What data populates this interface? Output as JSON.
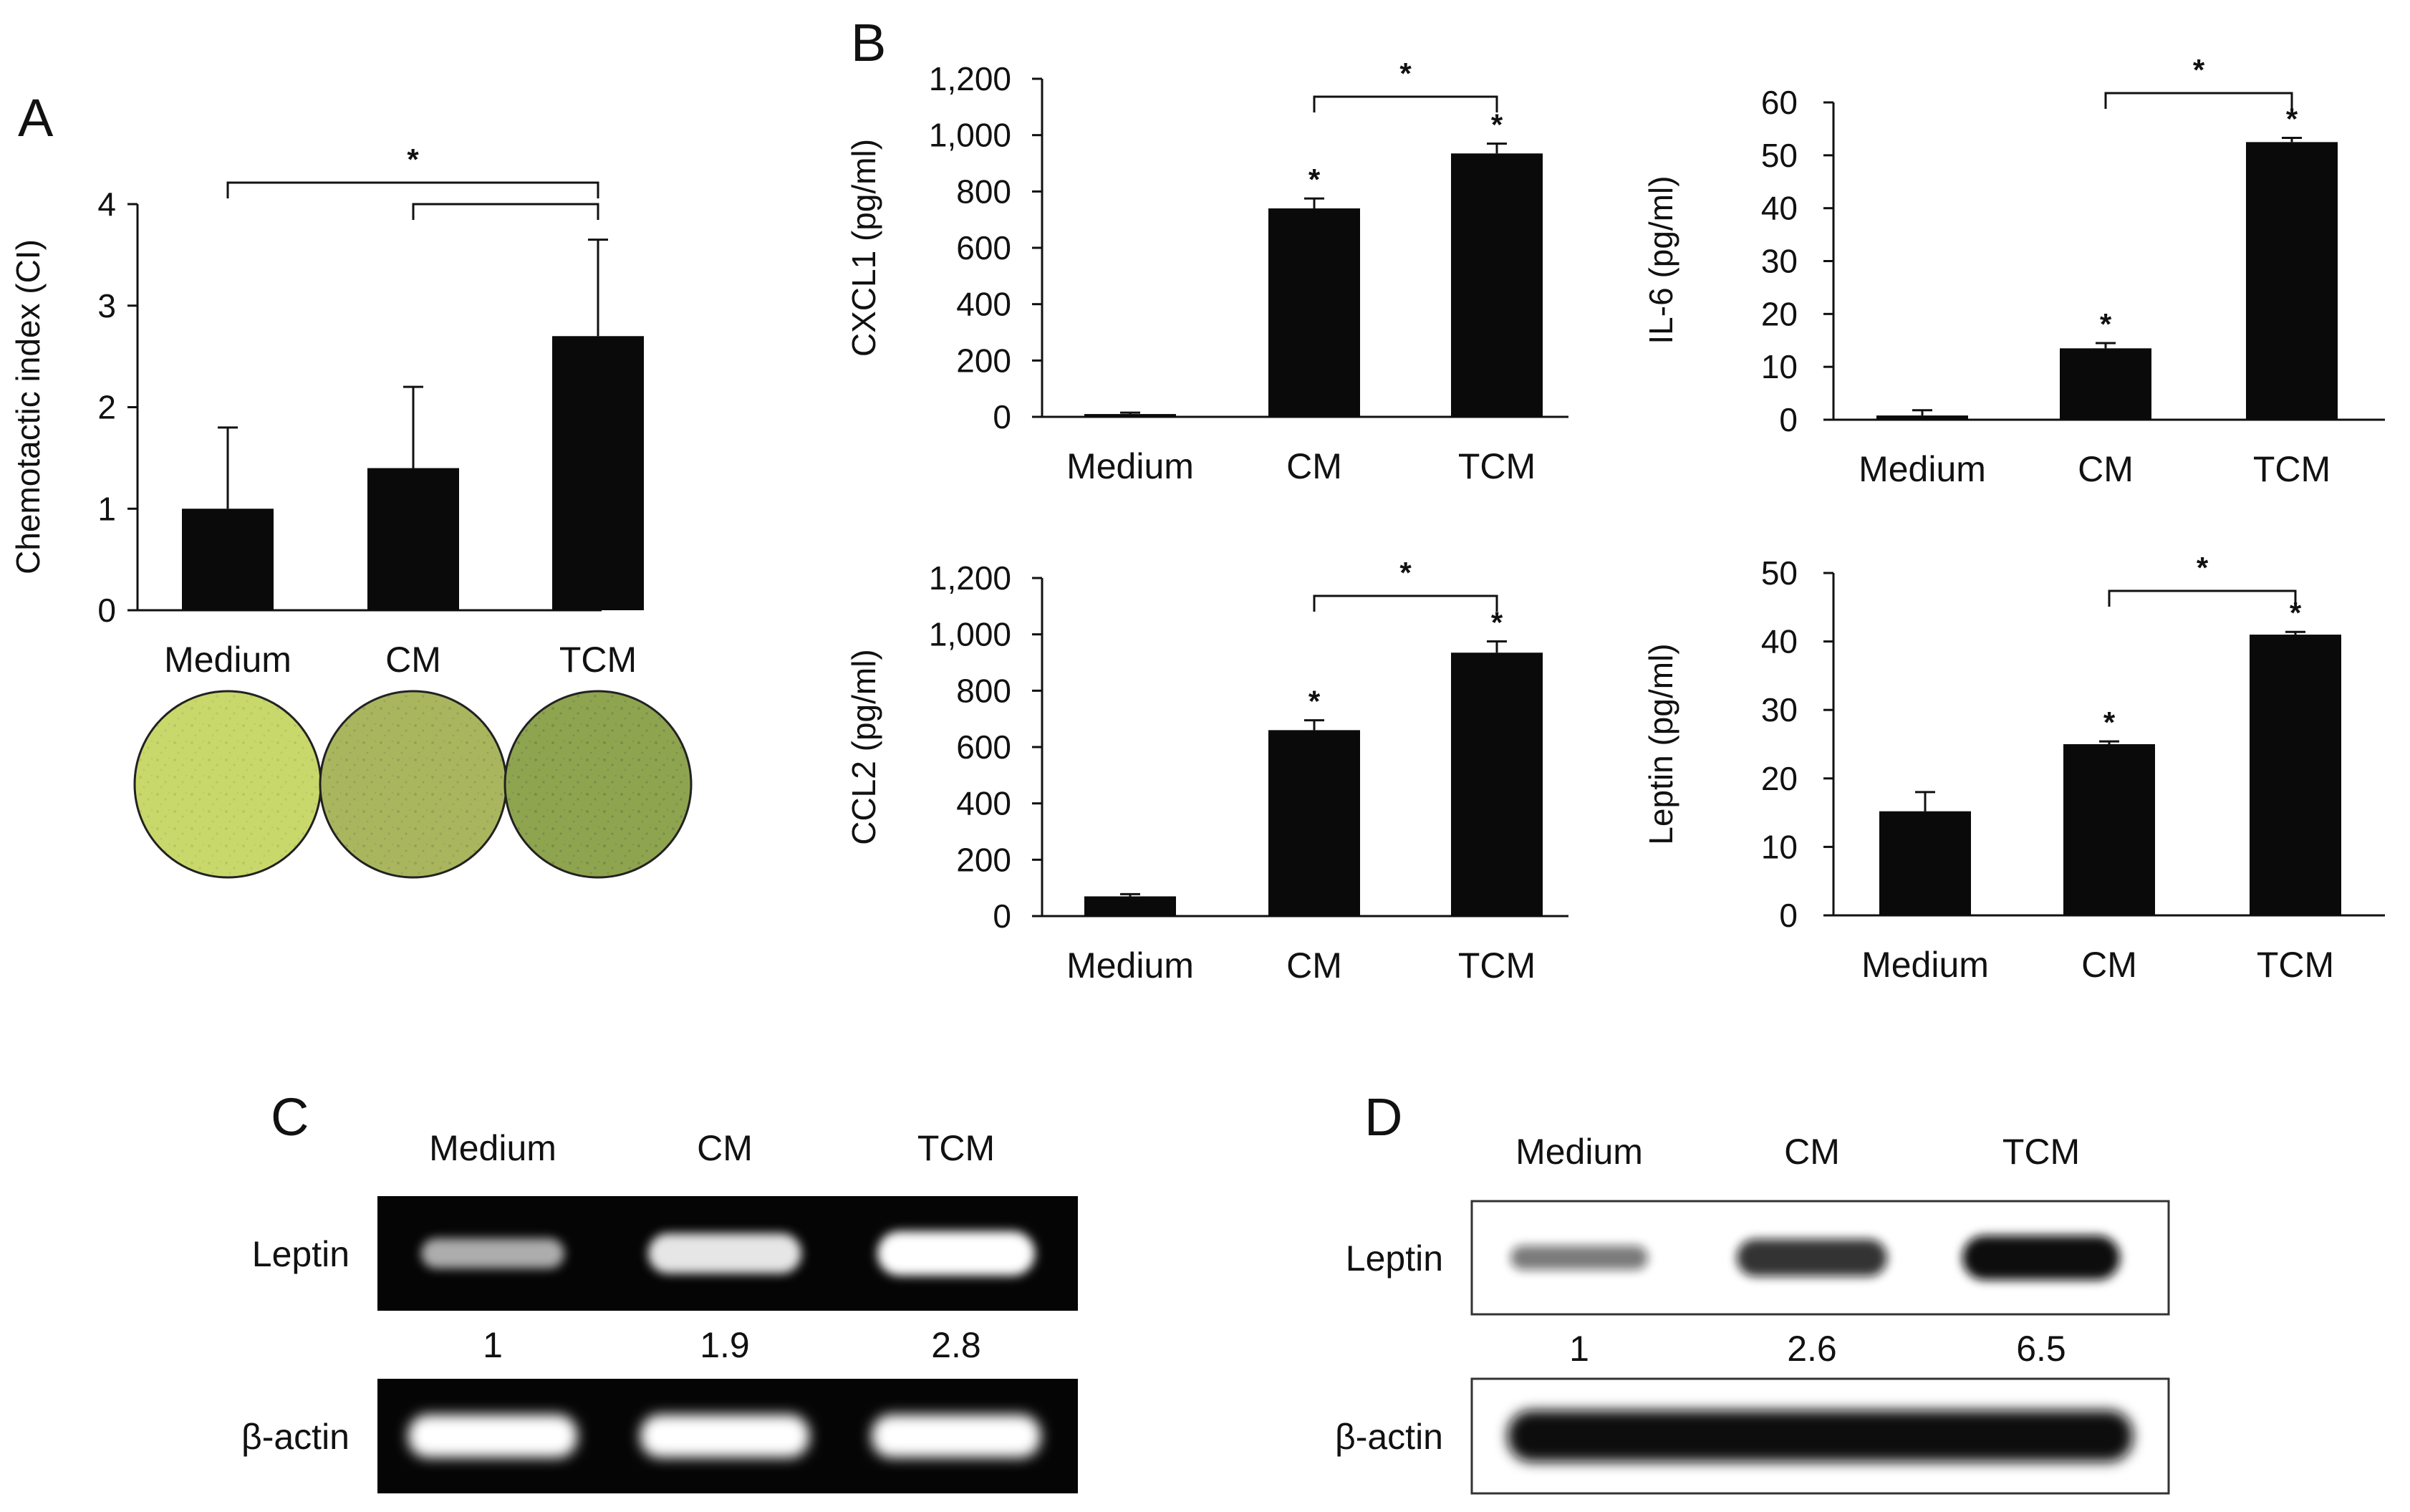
{
  "chart_data": [
    {
      "id": "A",
      "type": "bar",
      "panel_label": "A",
      "ylabel": "Chemotactic index (CI)",
      "categories": [
        "Medium",
        "CM",
        "TCM"
      ],
      "values": [
        1.0,
        1.4,
        2.7
      ],
      "errors": [
        0.8,
        0.8,
        0.95
      ],
      "ylim": [
        0,
        4
      ],
      "yticks": [
        "0",
        "1",
        "2",
        "3",
        "4"
      ],
      "bar_stars": [
        "",
        "",
        ""
      ],
      "brackets": [
        {
          "from": 0,
          "to": 2,
          "label": "*"
        },
        {
          "from": 1,
          "to": 2,
          "label": ""
        }
      ],
      "images": [
        {
          "label": "Medium",
          "color": "#c9d86a"
        },
        {
          "label": "CM",
          "color": "#aab65e"
        },
        {
          "label": "TCM",
          "color": "#8fa44f"
        }
      ]
    },
    {
      "id": "B1",
      "type": "bar",
      "panel_label": "B",
      "ylabel": "CXCL1 (pg/ml)",
      "categories": [
        "Medium",
        "CM",
        "TCM"
      ],
      "values": [
        10,
        740,
        935
      ],
      "errors": [
        5,
        35,
        35
      ],
      "ylim": [
        0,
        1200
      ],
      "yticks": [
        "0",
        "200",
        "400",
        "600",
        "800",
        "1,000",
        "1,200"
      ],
      "bar_stars": [
        "",
        "*",
        "*"
      ],
      "brackets": [
        {
          "from": 1,
          "to": 2,
          "label": "*"
        }
      ]
    },
    {
      "id": "B2",
      "type": "bar",
      "panel_label": "",
      "ylabel": "IL-6 (pg/ml)",
      "categories": [
        "Medium",
        "CM",
        "TCM"
      ],
      "values": [
        0.8,
        13.5,
        52.5
      ],
      "errors": [
        1.0,
        1.0,
        0.8
      ],
      "ylim": [
        0,
        60
      ],
      "yticks": [
        "0",
        "10",
        "20",
        "30",
        "40",
        "50",
        "60"
      ],
      "bar_stars": [
        "",
        "*",
        "*"
      ],
      "brackets": [
        {
          "from": 1,
          "to": 2,
          "label": "*"
        }
      ]
    },
    {
      "id": "B3",
      "type": "bar",
      "panel_label": "",
      "ylabel": "CCL2 (pg/ml)",
      "categories": [
        "Medium",
        "CM",
        "TCM"
      ],
      "values": [
        70,
        660,
        935
      ],
      "errors": [
        8,
        35,
        40
      ],
      "ylim": [
        0,
        1200
      ],
      "yticks": [
        "0",
        "200",
        "400",
        "600",
        "800",
        "1,000",
        "1,200"
      ],
      "bar_stars": [
        "",
        "*",
        "*"
      ],
      "brackets": [
        {
          "from": 1,
          "to": 2,
          "label": "*"
        }
      ]
    },
    {
      "id": "B4",
      "type": "bar",
      "panel_label": "",
      "ylabel": "Leptin (pg/ml)",
      "categories": [
        "Medium",
        "CM",
        "TCM"
      ],
      "values": [
        15.2,
        25.0,
        41.0
      ],
      "errors": [
        2.8,
        0.4,
        0.4
      ],
      "ylim": [
        0,
        50
      ],
      "yticks": [
        "0",
        "10",
        "20",
        "30",
        "40",
        "50"
      ],
      "bar_stars": [
        "",
        "*",
        "*"
      ],
      "brackets": [
        {
          "from": 1,
          "to": 2,
          "label": "*"
        }
      ]
    }
  ],
  "gels": [
    {
      "id": "C",
      "panel_label": "C",
      "lanes": [
        "Medium",
        "CM",
        "TCM"
      ],
      "rows": [
        "Leptin",
        "β-actin"
      ],
      "ratios": [
        "1",
        "1.9",
        "2.8"
      ],
      "band_intensity": [
        0.5,
        0.85,
        1.0
      ]
    },
    {
      "id": "D",
      "panel_label": "D",
      "lanes": [
        "Medium",
        "CM",
        "TCM"
      ],
      "rows": [
        "Leptin",
        "β-actin"
      ],
      "ratios": [
        "1",
        "2.6",
        "6.5"
      ],
      "band_intensity": [
        0.3,
        0.75,
        1.0
      ]
    }
  ]
}
